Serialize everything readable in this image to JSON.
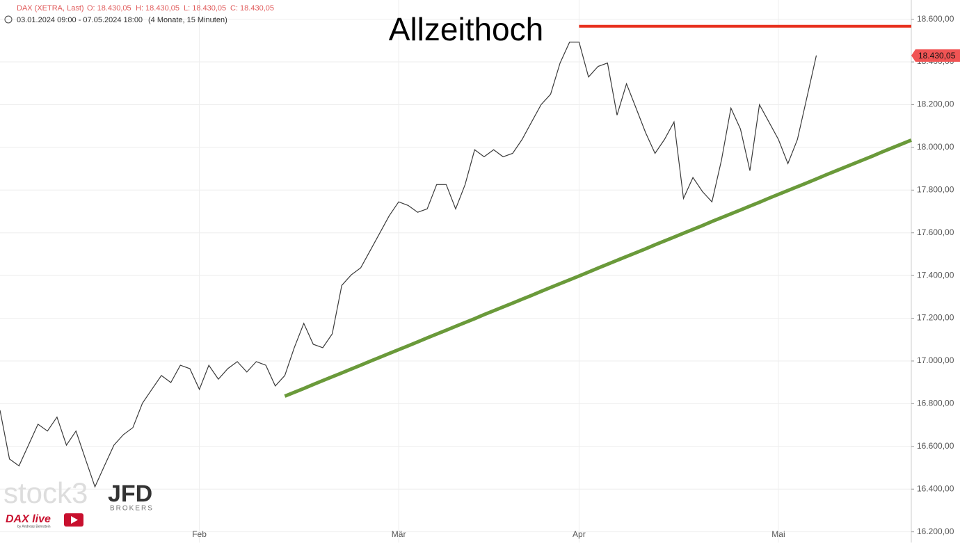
{
  "chart_data": {
    "type": "line",
    "header": {
      "instrument": "DAX (XETRA, Last)",
      "ohlc": [
        "O: 18.430,05",
        "H: 18.430,05",
        "L: 18.430,05",
        "C: 18.430,05"
      ],
      "range": "03.01.2024 09:00 - 07.05.2024 18:00",
      "period": "(4 Monate, 15 Minuten)"
    },
    "annotation": "Allzeithoch",
    "watermark": {
      "brand": "stock3",
      "broker": "JFD",
      "broker_sub": "BROKERS",
      "show": "DAX live",
      "show_sub": "by Andreas Bernstein"
    },
    "categories": [
      null,
      null,
      null,
      null,
      null,
      null,
      null,
      null,
      null,
      null,
      null,
      null,
      null,
      null,
      null,
      null,
      null,
      null,
      null,
      null,
      null,
      "Feb",
      null,
      null,
      null,
      null,
      null,
      null,
      null,
      null,
      null,
      null,
      null,
      null,
      null,
      null,
      null,
      null,
      null,
      null,
      null,
      null,
      "Mär",
      null,
      null,
      null,
      null,
      null,
      null,
      null,
      null,
      null,
      null,
      null,
      null,
      null,
      null,
      null,
      null,
      null,
      null,
      "Apr",
      null,
      null,
      null,
      null,
      null,
      null,
      null,
      null,
      null,
      null,
      null,
      null,
      null,
      null,
      null,
      null,
      null,
      null,
      null,
      null,
      "Mai",
      null,
      null,
      null,
      null,
      null,
      null,
      null,
      null,
      null,
      null,
      null,
      null,
      null,
      null
    ],
    "series": [
      {
        "color": "#3a3a3a",
        "line_width": 1.2,
        "values": [
          16769,
          16541,
          16509,
          16606,
          16704,
          16672,
          16737,
          16606,
          16672,
          16541,
          16411,
          16509,
          16606,
          16655,
          16688,
          16802,
          16867,
          16932,
          16899,
          16980,
          16964,
          16867,
          16980,
          16915,
          16964,
          16997,
          16948,
          16997,
          16980,
          16883,
          16932,
          17062,
          17176,
          17078,
          17062,
          17127,
          17354,
          17403,
          17436,
          17517,
          17598,
          17680,
          17745,
          17728,
          17696,
          17712,
          17826,
          17826,
          17712,
          17826,
          17989,
          17956,
          17989,
          17956,
          17972,
          18037,
          18119,
          18200,
          18249,
          18395,
          18493,
          18493,
          18330,
          18379,
          18395,
          18151,
          18298,
          18184,
          18070,
          17972,
          18037,
          18119,
          17761,
          17859,
          17793,
          17745,
          17940,
          18184,
          18086,
          17891,
          18200,
          18119,
          18037,
          17924,
          18037,
          18233,
          18430.05,
          null,
          null,
          null,
          null,
          null,
          null,
          null,
          null,
          null,
          null
        ]
      },
      {
        "color": "#e8321f",
        "line_width": 4,
        "values": [
          null,
          null,
          null,
          null,
          null,
          null,
          null,
          null,
          null,
          null,
          null,
          null,
          null,
          null,
          null,
          null,
          null,
          null,
          null,
          null,
          null,
          null,
          null,
          null,
          null,
          null,
          null,
          null,
          null,
          null,
          null,
          null,
          null,
          null,
          null,
          null,
          null,
          null,
          null,
          null,
          null,
          null,
          null,
          null,
          null,
          null,
          null,
          null,
          null,
          null,
          null,
          null,
          null,
          null,
          null,
          null,
          null,
          null,
          null,
          null,
          null,
          18567,
          18567,
          18567,
          18567,
          18567,
          18567,
          18567,
          18567,
          18567,
          18567,
          18567,
          18567,
          18567,
          18567,
          18567,
          18567,
          18567,
          18567,
          18567,
          18567,
          18567,
          18567,
          18567,
          18567,
          18567,
          18567,
          18567,
          18567,
          18567,
          18567,
          18567,
          18567,
          18567,
          18567,
          18567,
          18567
        ]
      },
      {
        "color": "#6a9a3a",
        "line_width": 5,
        "values": [
          null,
          null,
          null,
          null,
          null,
          null,
          null,
          null,
          null,
          null,
          null,
          null,
          null,
          null,
          null,
          null,
          null,
          null,
          null,
          null,
          null,
          null,
          null,
          null,
          null,
          null,
          null,
          null,
          null,
          null,
          16835,
          16853,
          16871,
          16890,
          16908,
          16926,
          16944,
          16962,
          16980,
          16999,
          17017,
          17035,
          17053,
          17071,
          17089,
          17108,
          17126,
          17144,
          17162,
          17180,
          17198,
          17217,
          17235,
          17253,
          17271,
          17289,
          17307,
          17326,
          17344,
          17362,
          17380,
          17398,
          17416,
          17435,
          17453,
          17471,
          17489,
          17507,
          17525,
          17544,
          17562,
          17580,
          17598,
          17616,
          17634,
          17653,
          17671,
          17689,
          17707,
          17725,
          17743,
          17762,
          17780,
          17798,
          17816,
          17834,
          17852,
          17871,
          17889,
          17907,
          17925,
          17943,
          17961,
          17980,
          17998,
          18016,
          18034
        ]
      }
    ],
    "last_price": {
      "value": 18430.05,
      "label": "18.430,05",
      "color": "#f05454"
    },
    "ylim": [
      16150,
      18690
    ],
    "yticks": [
      {
        "value": 16200,
        "label": "16.200,00"
      },
      {
        "value": 16400,
        "label": "16.400,00"
      },
      {
        "value": 16600,
        "label": "16.600,00"
      },
      {
        "value": 16800,
        "label": "16.800,00"
      },
      {
        "value": 17000,
        "label": "17.000,00"
      },
      {
        "value": 17200,
        "label": "17.200,00"
      },
      {
        "value": 17400,
        "label": "17.400,00"
      },
      {
        "value": 17600,
        "label": "17.600,00"
      },
      {
        "value": 17800,
        "label": "17.800,00"
      },
      {
        "value": 18000,
        "label": "18.000,00"
      },
      {
        "value": 18200,
        "label": "18.200,00"
      },
      {
        "value": 18400,
        "label": "18.400,00"
      },
      {
        "value": 18600,
        "label": "18.600,00"
      }
    ],
    "grid": true
  }
}
